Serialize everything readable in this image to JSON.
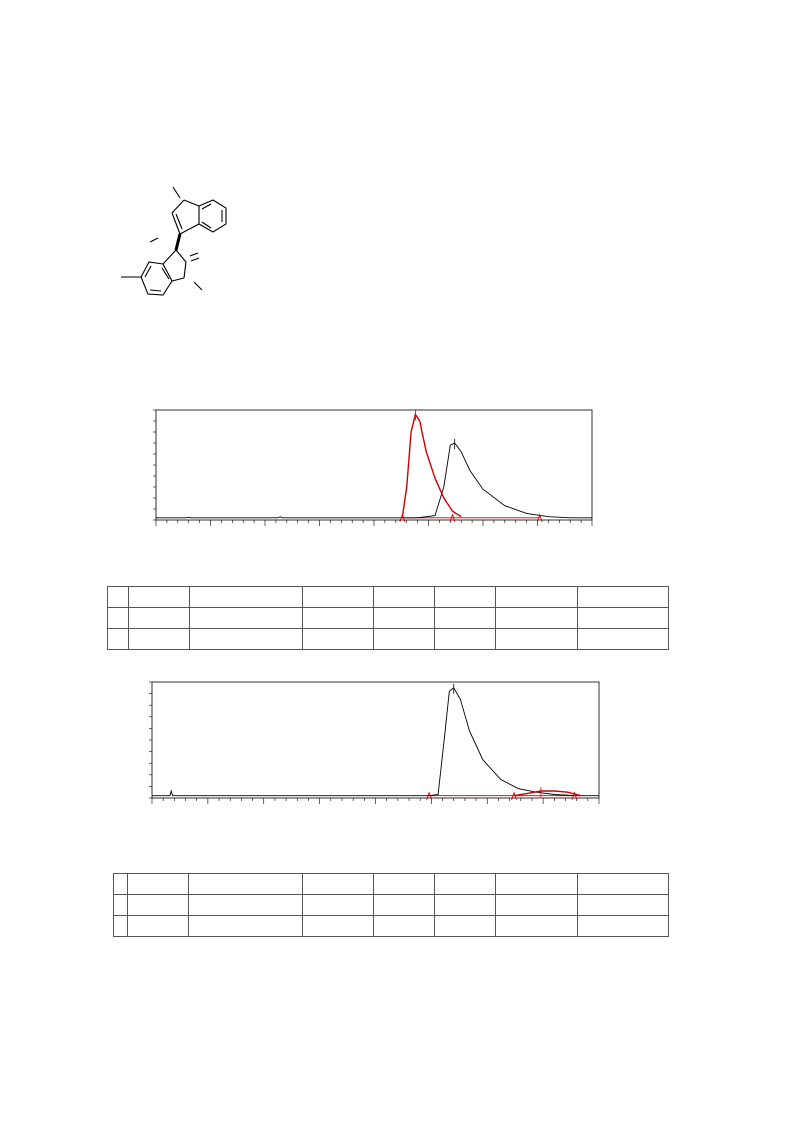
{
  "structure": {
    "name": "methylated indolyl oxindole structure",
    "atom_labels": []
  },
  "chart_data": [
    {
      "type": "line",
      "title": "",
      "xlabel": "",
      "ylabel": "",
      "xlim": [
        0,
        100
      ],
      "ylim": [
        0,
        100
      ],
      "grid": false,
      "legend": "none",
      "series": [
        {
          "color": "#000000",
          "x": [
            0,
            7,
            7.5,
            8,
            28,
            28.5,
            29,
            55,
            60,
            64,
            66,
            67.5,
            68.5,
            70,
            72,
            75,
            80,
            85,
            90,
            95,
            100
          ],
          "y": [
            2,
            2,
            2.5,
            2,
            2,
            3,
            2,
            2,
            2,
            4,
            30,
            68,
            70,
            62,
            45,
            28,
            13,
            6,
            3,
            2,
            2
          ]
        },
        {
          "color": "#cc0000",
          "x": [
            56.5,
            57.5,
            58.5,
            59.5,
            60.5,
            61,
            62,
            64,
            66,
            68,
            70
          ],
          "y": [
            2,
            30,
            80,
            96,
            90,
            80,
            62,
            38,
            20,
            8,
            3
          ]
        }
      ],
      "baseline_marks": [
        56.5,
        68,
        88
      ]
    },
    {
      "type": "line",
      "title": "",
      "xlabel": "",
      "ylabel": "",
      "xlim": [
        0,
        100
      ],
      "ylim": [
        0,
        100
      ],
      "grid": false,
      "legend": "none",
      "series": [
        {
          "color": "#000000",
          "x": [
            0,
            4,
            4.3,
            4.6,
            5,
            62,
            64,
            65.5,
            66.5,
            67.5,
            69,
            71,
            74,
            78,
            82,
            86,
            90,
            95,
            100
          ],
          "y": [
            2,
            2,
            6,
            2,
            2,
            2,
            3,
            55,
            92,
            95,
            85,
            58,
            33,
            16,
            8,
            5,
            3,
            2,
            2
          ]
        },
        {
          "color": "#cc0000",
          "x": [
            81,
            84,
            87,
            90,
            93,
            95,
            96
          ],
          "y": [
            2,
            4,
            6,
            6,
            5,
            3,
            2
          ]
        }
      ],
      "baseline_marks": [
        62,
        81,
        94.5
      ]
    }
  ],
  "tables": [
    {
      "rows": [
        [
          "",
          "",
          "",
          "",
          "",
          "",
          "",
          ""
        ],
        [
          "",
          "",
          "",
          "",
          "",
          "",
          "",
          ""
        ],
        [
          "",
          "",
          "",
          "",
          "",
          "",
          "",
          ""
        ]
      ]
    },
    {
      "rows": [
        [
          "",
          "",
          "",
          "",
          "",
          "",
          "",
          ""
        ],
        [
          "",
          "",
          "",
          "",
          "",
          "",
          "",
          ""
        ],
        [
          "",
          "",
          "",
          "",
          "",
          "",
          "",
          ""
        ]
      ]
    }
  ]
}
